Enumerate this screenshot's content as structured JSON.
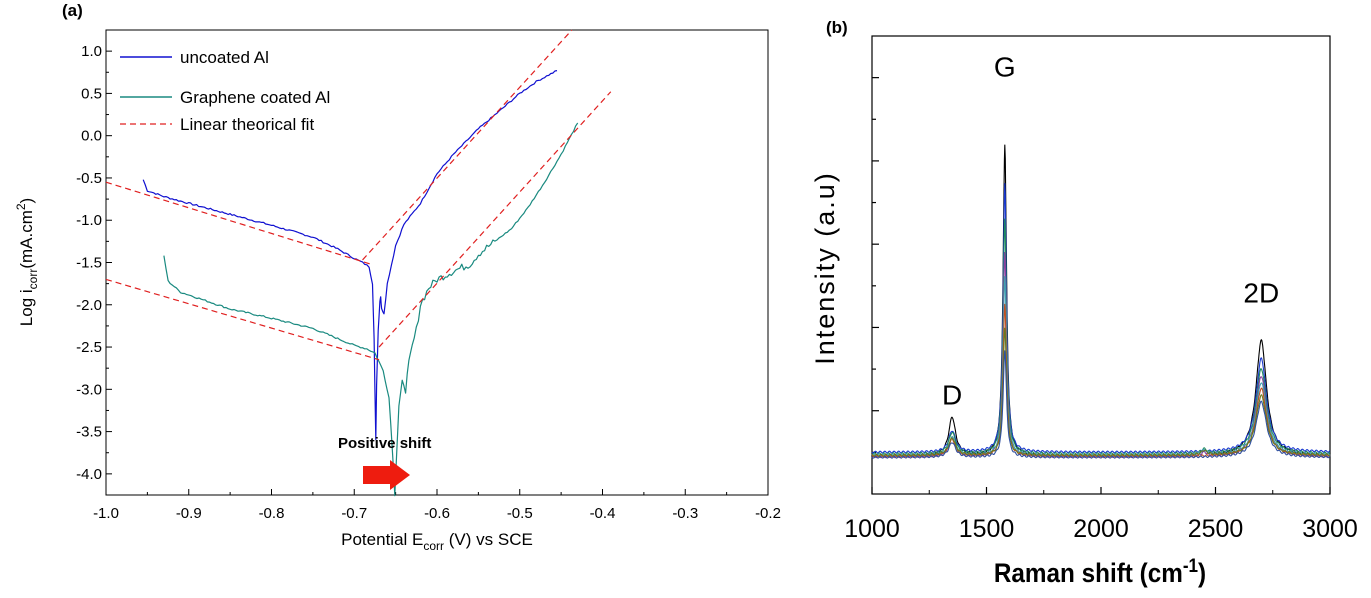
{
  "chart_data": [
    {
      "panel_label": "(a)",
      "type": "line",
      "xlabel": {
        "main": "Potential E",
        "sub": "corr",
        "rest": " (V) vs SCE"
      },
      "ylabel": {
        "pre": "Log i",
        "sub": "corr",
        "mid": "(mA.cm",
        "sup": "2",
        "post": ")"
      },
      "xlim": [
        -1.0,
        -0.2
      ],
      "ylim": [
        -4.25,
        1.25
      ],
      "xticks": [
        -1.0,
        -0.9,
        -0.8,
        -0.7,
        -0.6,
        -0.5,
        -0.4,
        -0.3,
        -0.2
      ],
      "xtick_labels": [
        "-1.0",
        "-0.9",
        "-0.8",
        "-0.7",
        "-0.6",
        "-0.5",
        "-0.4",
        "-0.3",
        "-0.2"
      ],
      "yticks": [
        -4.0,
        -3.5,
        -3.0,
        -2.5,
        -2.0,
        -1.5,
        -1.0,
        -0.5,
        0.0,
        0.5,
        1.0
      ],
      "ytick_labels": [
        "-4.0",
        "-3.5",
        "-3.0",
        "-2.5",
        "-2.0",
        "-1.5",
        "-1.0",
        "-0.5",
        "0.0",
        "0.5",
        "1.0"
      ],
      "legend_position": "top-left",
      "annotation": "Positive shift",
      "series": [
        {
          "name": "uncoated Al",
          "color": "#1010d0",
          "style": "solid",
          "points": [
            [
              -0.955,
              -0.52
            ],
            [
              -0.95,
              -0.65
            ],
            [
              -0.93,
              -0.72
            ],
            [
              -0.9,
              -0.8
            ],
            [
              -0.85,
              -0.93
            ],
            [
              -0.8,
              -1.06
            ],
            [
              -0.75,
              -1.2
            ],
            [
              -0.72,
              -1.34
            ],
            [
              -0.7,
              -1.45
            ],
            [
              -0.69,
              -1.5
            ],
            [
              -0.682,
              -1.55
            ],
            [
              -0.678,
              -1.75
            ],
            [
              -0.676,
              -2.4
            ],
            [
              -0.674,
              -3.6
            ],
            [
              -0.673,
              -2.95
            ],
            [
              -0.671,
              -2.3
            ],
            [
              -0.669,
              -1.95
            ],
            [
              -0.668,
              -1.9
            ],
            [
              -0.667,
              -2.05
            ],
            [
              -0.664,
              -2.1
            ],
            [
              -0.66,
              -1.75
            ],
            [
              -0.65,
              -1.3
            ],
            [
              -0.64,
              -1.05
            ],
            [
              -0.62,
              -0.8
            ],
            [
              -0.6,
              -0.45
            ],
            [
              -0.58,
              -0.22
            ],
            [
              -0.55,
              0.08
            ],
            [
              -0.52,
              0.33
            ],
            [
              -0.5,
              0.5
            ],
            [
              -0.48,
              0.64
            ],
            [
              -0.455,
              0.77
            ]
          ]
        },
        {
          "name": "Graphene coated Al",
          "color": "#1a8a80",
          "style": "solid",
          "points": [
            [
              -0.93,
              -1.42
            ],
            [
              -0.925,
              -1.72
            ],
            [
              -0.91,
              -1.85
            ],
            [
              -0.88,
              -1.95
            ],
            [
              -0.85,
              -2.05
            ],
            [
              -0.8,
              -2.16
            ],
            [
              -0.75,
              -2.28
            ],
            [
              -0.72,
              -2.4
            ],
            [
              -0.7,
              -2.48
            ],
            [
              -0.685,
              -2.52
            ],
            [
              -0.675,
              -2.57
            ],
            [
              -0.665,
              -2.78
            ],
            [
              -0.658,
              -3.1
            ],
            [
              -0.654,
              -3.7
            ],
            [
              -0.651,
              -4.25
            ],
            [
              -0.649,
              -3.8
            ],
            [
              -0.646,
              -3.2
            ],
            [
              -0.642,
              -2.9
            ],
            [
              -0.638,
              -3.0
            ],
            [
              -0.634,
              -2.7
            ],
            [
              -0.63,
              -2.5
            ],
            [
              -0.625,
              -2.3
            ],
            [
              -0.62,
              -2.0
            ],
            [
              -0.61,
              -1.8
            ],
            [
              -0.6,
              -1.7
            ],
            [
              -0.58,
              -1.6
            ],
            [
              -0.56,
              -1.52
            ],
            [
              -0.55,
              -1.4
            ],
            [
              -0.53,
              -1.25
            ],
            [
              -0.51,
              -1.1
            ],
            [
              -0.49,
              -0.85
            ],
            [
              -0.47,
              -0.55
            ],
            [
              -0.45,
              -0.22
            ],
            [
              -0.43,
              0.15
            ]
          ]
        },
        {
          "name": "Linear theorical fit",
          "color": "#e02020",
          "style": "dashed",
          "segments": [
            [
              [
                -1.0,
                -0.55
              ],
              [
                -0.68,
                -1.52
              ]
            ],
            [
              [
                -0.69,
                -1.47
              ],
              [
                -0.437,
                1.25
              ]
            ],
            [
              [
                -1.0,
                -1.7
              ],
              [
                -0.67,
                -2.65
              ]
            ],
            [
              [
                -0.67,
                -2.5
              ],
              [
                -0.39,
                0.52
              ]
            ]
          ]
        }
      ]
    },
    {
      "panel_label": "(b)",
      "type": "line",
      "xlabel": {
        "main": "Raman shift (cm",
        "sup": "-1",
        "post": ")"
      },
      "ylabel": "Intensity (a.u)",
      "xlim": [
        1000,
        3000
      ],
      "ylim": [
        0,
        1
      ],
      "xticks": [
        1000,
        1500,
        2000,
        2500,
        3000
      ],
      "xtick_labels": [
        "1000",
        "1500",
        "2000",
        "2500",
        "3000"
      ],
      "y_tick_labels_shown": false,
      "peaks": [
        {
          "label": "D",
          "x": 1350
        },
        {
          "label": "G",
          "x": 1580
        },
        {
          "label": "2D",
          "x": 2700
        }
      ],
      "spectra": [
        {
          "color": "#000000",
          "baseline": 0.09,
          "D": 0.09,
          "G": 0.73,
          "D2": 0.27,
          "extra": 0.01
        },
        {
          "color": "#1a3ad0",
          "baseline": 0.098,
          "D": 0.05,
          "G": 0.63,
          "D2": 0.22,
          "extra": 0.0
        },
        {
          "color": "#208a60",
          "baseline": 0.094,
          "D": 0.05,
          "G": 0.55,
          "D2": 0.2,
          "extra": 0.01
        },
        {
          "color": "#8a40a0",
          "baseline": 0.087,
          "D": 0.045,
          "G": 0.48,
          "D2": 0.19,
          "extra": 0.01
        },
        {
          "color": "#40a0b0",
          "baseline": 0.092,
          "D": 0.04,
          "G": 0.42,
          "D2": 0.17,
          "extra": 0.01
        },
        {
          "color": "#c05020",
          "baseline": 0.088,
          "D": 0.04,
          "G": 0.36,
          "D2": 0.16,
          "extra": 0.0
        },
        {
          "color": "#6a7a20",
          "baseline": 0.091,
          "D": 0.04,
          "G": 0.3,
          "D2": 0.14,
          "extra": 0.01
        },
        {
          "color": "#3050a0",
          "baseline": 0.086,
          "D": 0.035,
          "G": 0.25,
          "D2": 0.13,
          "extra": 0.0
        }
      ]
    }
  ]
}
